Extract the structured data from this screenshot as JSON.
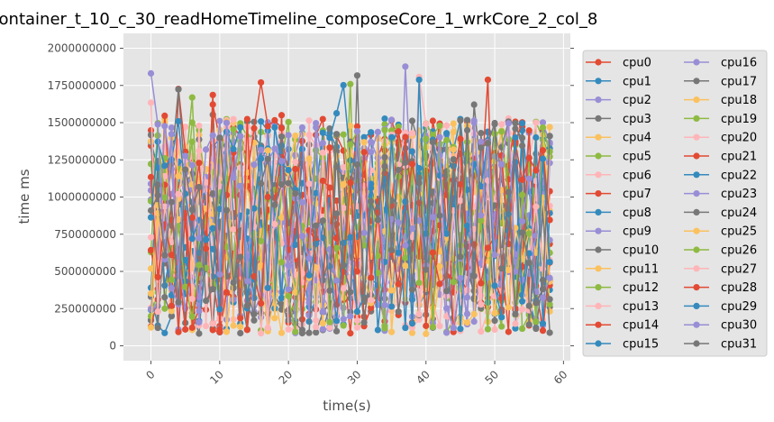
{
  "chart_data": {
    "type": "line",
    "title": "container_t_10_c_30_readHomeTimeline_composeCore_1_wrkCore_2_col_8",
    "xlabel": "time(s)",
    "ylabel": "time ms",
    "xlim": [
      -4,
      61
    ],
    "ylim": [
      -100000000,
      2100000000
    ],
    "xticks": [
      0,
      10,
      20,
      30,
      40,
      50,
      60
    ],
    "yticks": [
      0,
      250000000,
      500000000,
      750000000,
      1000000000,
      1250000000,
      1500000000,
      1750000000,
      2000000000
    ],
    "grid": true,
    "legend_position": "right",
    "legend_columns": 2,
    "x": [
      0,
      1,
      2,
      3,
      4,
      5,
      6,
      7,
      8,
      9,
      10,
      11,
      12,
      13,
      14,
      15,
      16,
      17,
      18,
      19,
      20,
      21,
      22,
      23,
      24,
      25,
      26,
      27,
      28,
      29,
      30,
      31,
      32,
      33,
      34,
      35,
      36,
      37,
      38,
      39,
      40,
      41,
      42,
      43,
      44,
      45,
      46,
      47,
      48,
      49,
      50,
      51,
      52,
      53,
      54,
      55,
      56,
      57,
      58
    ],
    "series": [
      {
        "name": "cpu0",
        "color": "#E24A33"
      },
      {
        "name": "cpu1",
        "color": "#348ABD"
      },
      {
        "name": "cpu2",
        "color": "#988ED5"
      },
      {
        "name": "cpu3",
        "color": "#777777"
      },
      {
        "name": "cpu4",
        "color": "#FBC15E"
      },
      {
        "name": "cpu5",
        "color": "#8EBA42"
      },
      {
        "name": "cpu6",
        "color": "#FFB5B8"
      },
      {
        "name": "cpu7",
        "color": "#E24A33"
      },
      {
        "name": "cpu8",
        "color": "#348ABD"
      },
      {
        "name": "cpu9",
        "color": "#988ED5"
      },
      {
        "name": "cpu10",
        "color": "#777777"
      },
      {
        "name": "cpu11",
        "color": "#FBC15E"
      },
      {
        "name": "cpu12",
        "color": "#8EBA42"
      },
      {
        "name": "cpu13",
        "color": "#FFB5B8"
      },
      {
        "name": "cpu14",
        "color": "#E24A33"
      },
      {
        "name": "cpu15",
        "color": "#348ABD"
      },
      {
        "name": "cpu16",
        "color": "#988ED5"
      },
      {
        "name": "cpu17",
        "color": "#777777"
      },
      {
        "name": "cpu18",
        "color": "#FBC15E"
      },
      {
        "name": "cpu19",
        "color": "#8EBA42"
      },
      {
        "name": "cpu20",
        "color": "#FFB5B8"
      },
      {
        "name": "cpu21",
        "color": "#E24A33"
      },
      {
        "name": "cpu22",
        "color": "#348ABD"
      },
      {
        "name": "cpu23",
        "color": "#988ED5"
      },
      {
        "name": "cpu24",
        "color": "#777777"
      },
      {
        "name": "cpu25",
        "color": "#FBC15E"
      },
      {
        "name": "cpu26",
        "color": "#8EBA42"
      },
      {
        "name": "cpu27",
        "color": "#FFB5B8"
      },
      {
        "name": "cpu28",
        "color": "#E24A33"
      },
      {
        "name": "cpu29",
        "color": "#348ABD"
      },
      {
        "name": "cpu30",
        "color": "#988ED5"
      },
      {
        "name": "cpu31",
        "color": "#777777"
      }
    ],
    "note_values": "Per-series y values are too dense to read individually; they fluctuate roughly between 0 and 2000000000 over x = 0..58."
  }
}
